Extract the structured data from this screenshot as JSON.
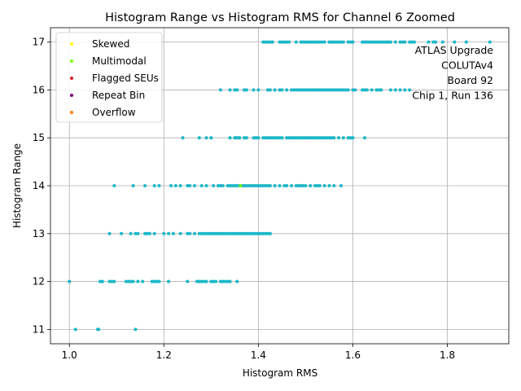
{
  "chart_data": {
    "type": "scatter",
    "title": "Histogram Range vs Histogram RMS for Channel 6 Zoomed",
    "xlabel": "Histogram RMS",
    "ylabel": "Histogram Range",
    "xlim": [
      0.96,
      1.93
    ],
    "ylim": [
      10.7,
      17.3
    ],
    "xticks": [
      1.0,
      1.2,
      1.4,
      1.6,
      1.8
    ],
    "xtick_labels": [
      "1.0",
      "1.2",
      "1.4",
      "1.6",
      "1.8"
    ],
    "yticks": [
      11,
      12,
      13,
      14,
      15,
      16,
      17
    ],
    "ytick_labels": [
      "11",
      "12",
      "13",
      "14",
      "15",
      "16",
      "17"
    ],
    "grid": true,
    "legend_placement": "upper-left",
    "legend": [
      {
        "label": "Skewed",
        "color": "#ffff00"
      },
      {
        "label": "Multimodal",
        "color": "#7cfc00"
      },
      {
        "label": "Flagged SEUs",
        "color": "#e41a1c"
      },
      {
        "label": "Repeat Bin",
        "color": "#800080"
      },
      {
        "label": "Overflow",
        "color": "#ff7f0e"
      }
    ],
    "annotation": [
      "ATLAS Upgrade",
      "COLUTAv4",
      "Board 92",
      "Chip 1, Run 136"
    ],
    "point_color": "#17becf",
    "series": [
      {
        "y": 17,
        "x": [
          1.41,
          1.415,
          1.42,
          1.425,
          1.43,
          1.445,
          1.45,
          1.455,
          1.46,
          1.465,
          1.48,
          1.49,
          1.495,
          1.5,
          1.505,
          1.51,
          1.515,
          1.52,
          1.525,
          1.53,
          1.535,
          1.54,
          1.55,
          1.555,
          1.56,
          1.565,
          1.57,
          1.575,
          1.58,
          1.59,
          1.595,
          1.6,
          1.62,
          1.625,
          1.63,
          1.635,
          1.64,
          1.645,
          1.65,
          1.655,
          1.66,
          1.665,
          1.67,
          1.675,
          1.68,
          1.69,
          1.7,
          1.705,
          1.71,
          1.72,
          1.725,
          1.73,
          1.76,
          1.77,
          1.775,
          1.79,
          1.815,
          1.84,
          1.89
        ]
      },
      {
        "y": 16,
        "x": [
          1.32,
          1.34,
          1.35,
          1.355,
          1.37,
          1.375,
          1.39,
          1.4,
          1.42,
          1.425,
          1.435,
          1.445,
          1.45,
          1.46,
          1.47,
          1.475,
          1.48,
          1.485,
          1.49,
          1.495,
          1.5,
          1.505,
          1.51,
          1.515,
          1.52,
          1.525,
          1.53,
          1.535,
          1.54,
          1.545,
          1.55,
          1.555,
          1.56,
          1.565,
          1.57,
          1.575,
          1.58,
          1.585,
          1.59,
          1.6,
          1.605,
          1.62,
          1.625,
          1.63,
          1.64,
          1.65,
          1.655,
          1.66,
          1.68,
          1.69,
          1.7,
          1.71,
          1.72
        ]
      },
      {
        "y": 15,
        "x": [
          1.24,
          1.275,
          1.29,
          1.3,
          1.34,
          1.35,
          1.355,
          1.36,
          1.37,
          1.375,
          1.39,
          1.395,
          1.4,
          1.41,
          1.415,
          1.42,
          1.425,
          1.43,
          1.435,
          1.44,
          1.445,
          1.45,
          1.46,
          1.465,
          1.47,
          1.475,
          1.48,
          1.485,
          1.49,
          1.495,
          1.5,
          1.505,
          1.51,
          1.515,
          1.52,
          1.525,
          1.53,
          1.535,
          1.54,
          1.545,
          1.55,
          1.555,
          1.56,
          1.57,
          1.58,
          1.59,
          1.595,
          1.6,
          1.625
        ]
      },
      {
        "y": 14,
        "x": [
          1.095,
          1.135,
          1.16,
          1.18,
          1.19,
          1.215,
          1.225,
          1.235,
          1.25,
          1.255,
          1.265,
          1.28,
          1.29,
          1.305,
          1.315,
          1.32,
          1.325,
          1.335,
          1.34,
          1.345,
          1.35,
          1.355,
          1.36,
          1.365,
          1.37,
          1.375,
          1.38,
          1.385,
          1.39,
          1.395,
          1.4,
          1.405,
          1.41,
          1.415,
          1.42,
          1.425,
          1.435,
          1.445,
          1.455,
          1.46,
          1.47,
          1.48,
          1.485,
          1.49,
          1.495,
          1.5,
          1.51,
          1.52,
          1.525,
          1.53,
          1.54,
          1.55,
          1.56,
          1.575
        ]
      },
      {
        "y": 13,
        "x": [
          1.085,
          1.11,
          1.13,
          1.14,
          1.145,
          1.16,
          1.165,
          1.17,
          1.18,
          1.2,
          1.21,
          1.22,
          1.235,
          1.25,
          1.255,
          1.265,
          1.275,
          1.28,
          1.285,
          1.29,
          1.295,
          1.3,
          1.305,
          1.31,
          1.315,
          1.32,
          1.325,
          1.33,
          1.335,
          1.34,
          1.345,
          1.35,
          1.355,
          1.36,
          1.365,
          1.37,
          1.375,
          1.38,
          1.385,
          1.39,
          1.395,
          1.4,
          1.405,
          1.41,
          1.415,
          1.42,
          1.425
        ]
      },
      {
        "y": 12,
        "x": [
          1.0,
          1.065,
          1.07,
          1.085,
          1.09,
          1.095,
          1.12,
          1.125,
          1.13,
          1.135,
          1.145,
          1.155,
          1.175,
          1.18,
          1.185,
          1.19,
          1.21,
          1.25,
          1.27,
          1.275,
          1.28,
          1.285,
          1.29,
          1.3,
          1.305,
          1.31,
          1.32,
          1.325,
          1.33,
          1.335,
          1.34,
          1.355
        ]
      },
      {
        "y": 11,
        "x": [
          1.013,
          1.06,
          1.062,
          1.14
        ]
      }
    ],
    "highlight": [
      {
        "x": 1.362,
        "y": 14,
        "label": "Multimodal"
      }
    ]
  }
}
